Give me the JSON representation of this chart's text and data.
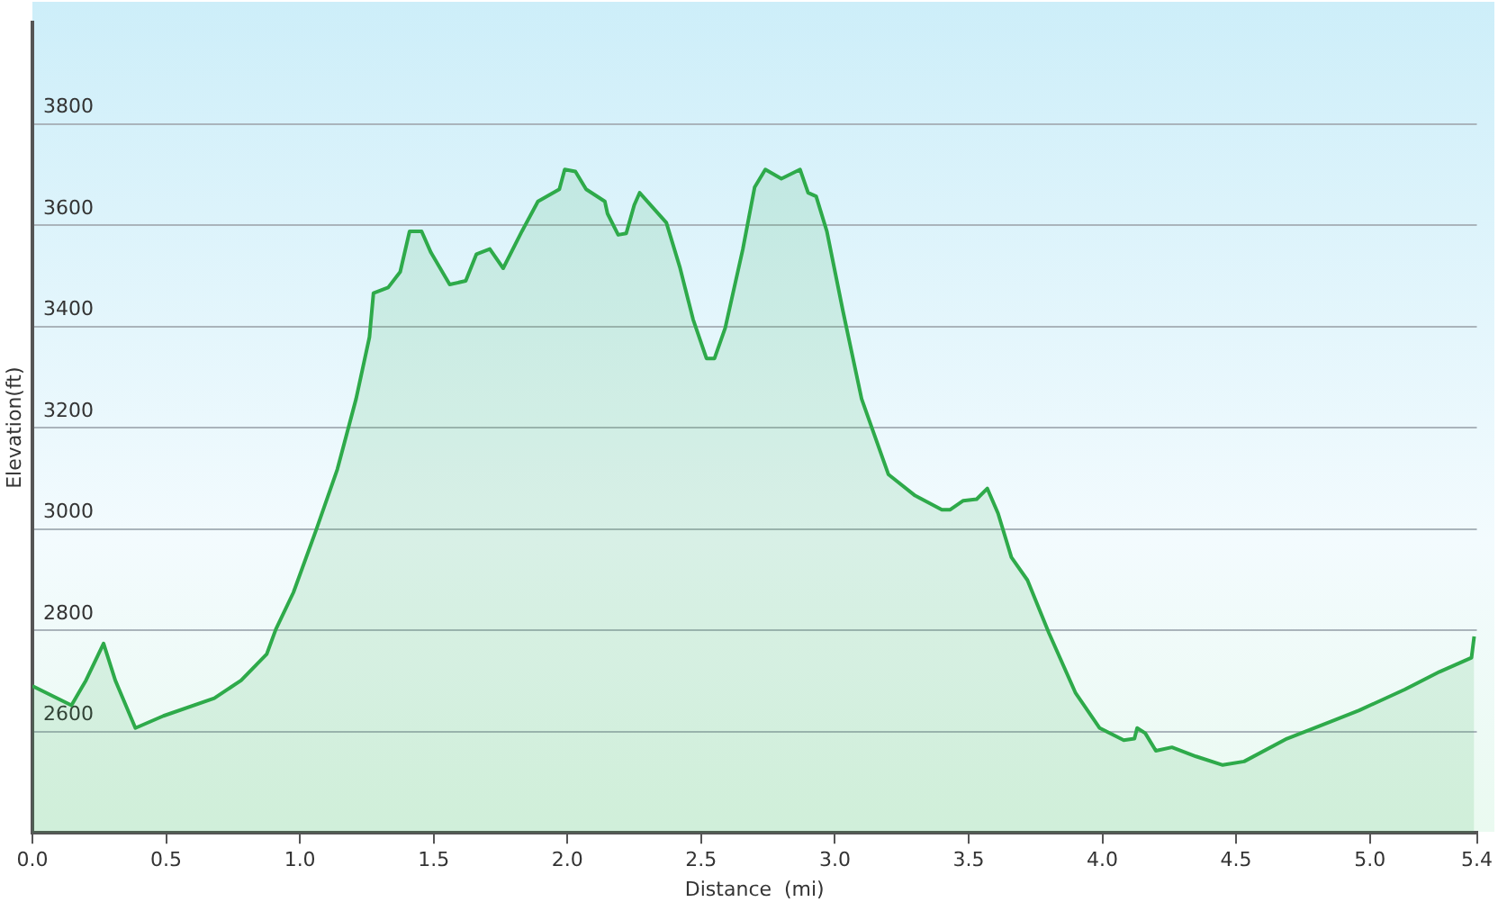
{
  "chart_data": {
    "type": "area",
    "xlabel": "Distance  (mi)",
    "ylabel": "Elevation(ft)",
    "x": [
      0,
      0.146,
      0.2,
      0.266,
      0.31,
      0.385,
      0.49,
      0.68,
      0.78,
      0.876,
      0.91,
      0.976,
      1.06,
      1.14,
      1.21,
      1.26,
      1.275,
      1.33,
      1.375,
      1.41,
      1.455,
      1.49,
      1.56,
      1.62,
      1.66,
      1.71,
      1.76,
      1.83,
      1.89,
      1.97,
      1.99,
      2.03,
      2.07,
      2.14,
      2.15,
      2.19,
      2.22,
      2.25,
      2.27,
      2.37,
      2.42,
      2.47,
      2.52,
      2.55,
      2.59,
      2.656,
      2.7,
      2.74,
      2.8,
      2.87,
      2.9,
      2.93,
      2.97,
      3.03,
      3.1,
      3.2,
      3.3,
      3.4,
      3.43,
      3.48,
      3.53,
      3.57,
      3.61,
      3.66,
      3.72,
      3.8,
      3.9,
      3.99,
      4.08,
      4.12,
      4.13,
      4.16,
      4.2,
      4.26,
      4.35,
      4.45,
      4.53,
      4.69,
      4.86,
      4.96,
      5.13,
      5.26,
      5.38,
      5.39
    ],
    "series": [
      {
        "color": "#2eaa4a",
        "values": [
          2690,
          2652,
          2701,
          2774,
          2701,
          2607,
          2631,
          2666,
          2701,
          2753,
          2802,
          2875,
          2997,
          3118,
          3257,
          3379,
          3466,
          3477,
          3508,
          3588,
          3588,
          3546,
          3483,
          3490,
          3543,
          3553,
          3515,
          3588,
          3647,
          3671,
          3710,
          3706,
          3671,
          3647,
          3623,
          3581,
          3584,
          3640,
          3664,
          3605,
          3518,
          3414,
          3337,
          3337,
          3397,
          3553,
          3675,
          3710,
          3692,
          3710,
          3664,
          3657,
          3588,
          3431,
          3257,
          3108,
          3066,
          3038,
          3038,
          3056,
          3059,
          3080,
          3031,
          2944,
          2899,
          2795,
          2676,
          2607,
          2583,
          2586,
          2607,
          2597,
          2562,
          2569,
          2551,
          2534,
          2541,
          2586,
          2621,
          2642,
          2683,
          2718,
          2746,
          2788
        ]
      }
    ],
    "xlim": [
      0,
      5.4
    ],
    "xticks": [
      {
        "value": 0,
        "label": "0.0"
      },
      {
        "value": 0.5,
        "label": "0.5"
      },
      {
        "value": 1,
        "label": "1.0"
      },
      {
        "value": 1.5,
        "label": "1.5"
      },
      {
        "value": 2,
        "label": "2.0"
      },
      {
        "value": 2.5,
        "label": "2.5"
      },
      {
        "value": 3,
        "label": "3.0"
      },
      {
        "value": 3.5,
        "label": "3.5"
      },
      {
        "value": 4,
        "label": "4.0"
      },
      {
        "value": 4.5,
        "label": "4.5"
      },
      {
        "value": 5,
        "label": "5.0"
      },
      {
        "value": 5.4,
        "label": "5.4"
      }
    ],
    "ylim": [
      2400,
      4000
    ],
    "yticks": [
      2600,
      2800,
      3000,
      3200,
      3400,
      3600,
      3800
    ],
    "grid": "y",
    "legend": false,
    "marker": "none",
    "line_style": "solid"
  }
}
